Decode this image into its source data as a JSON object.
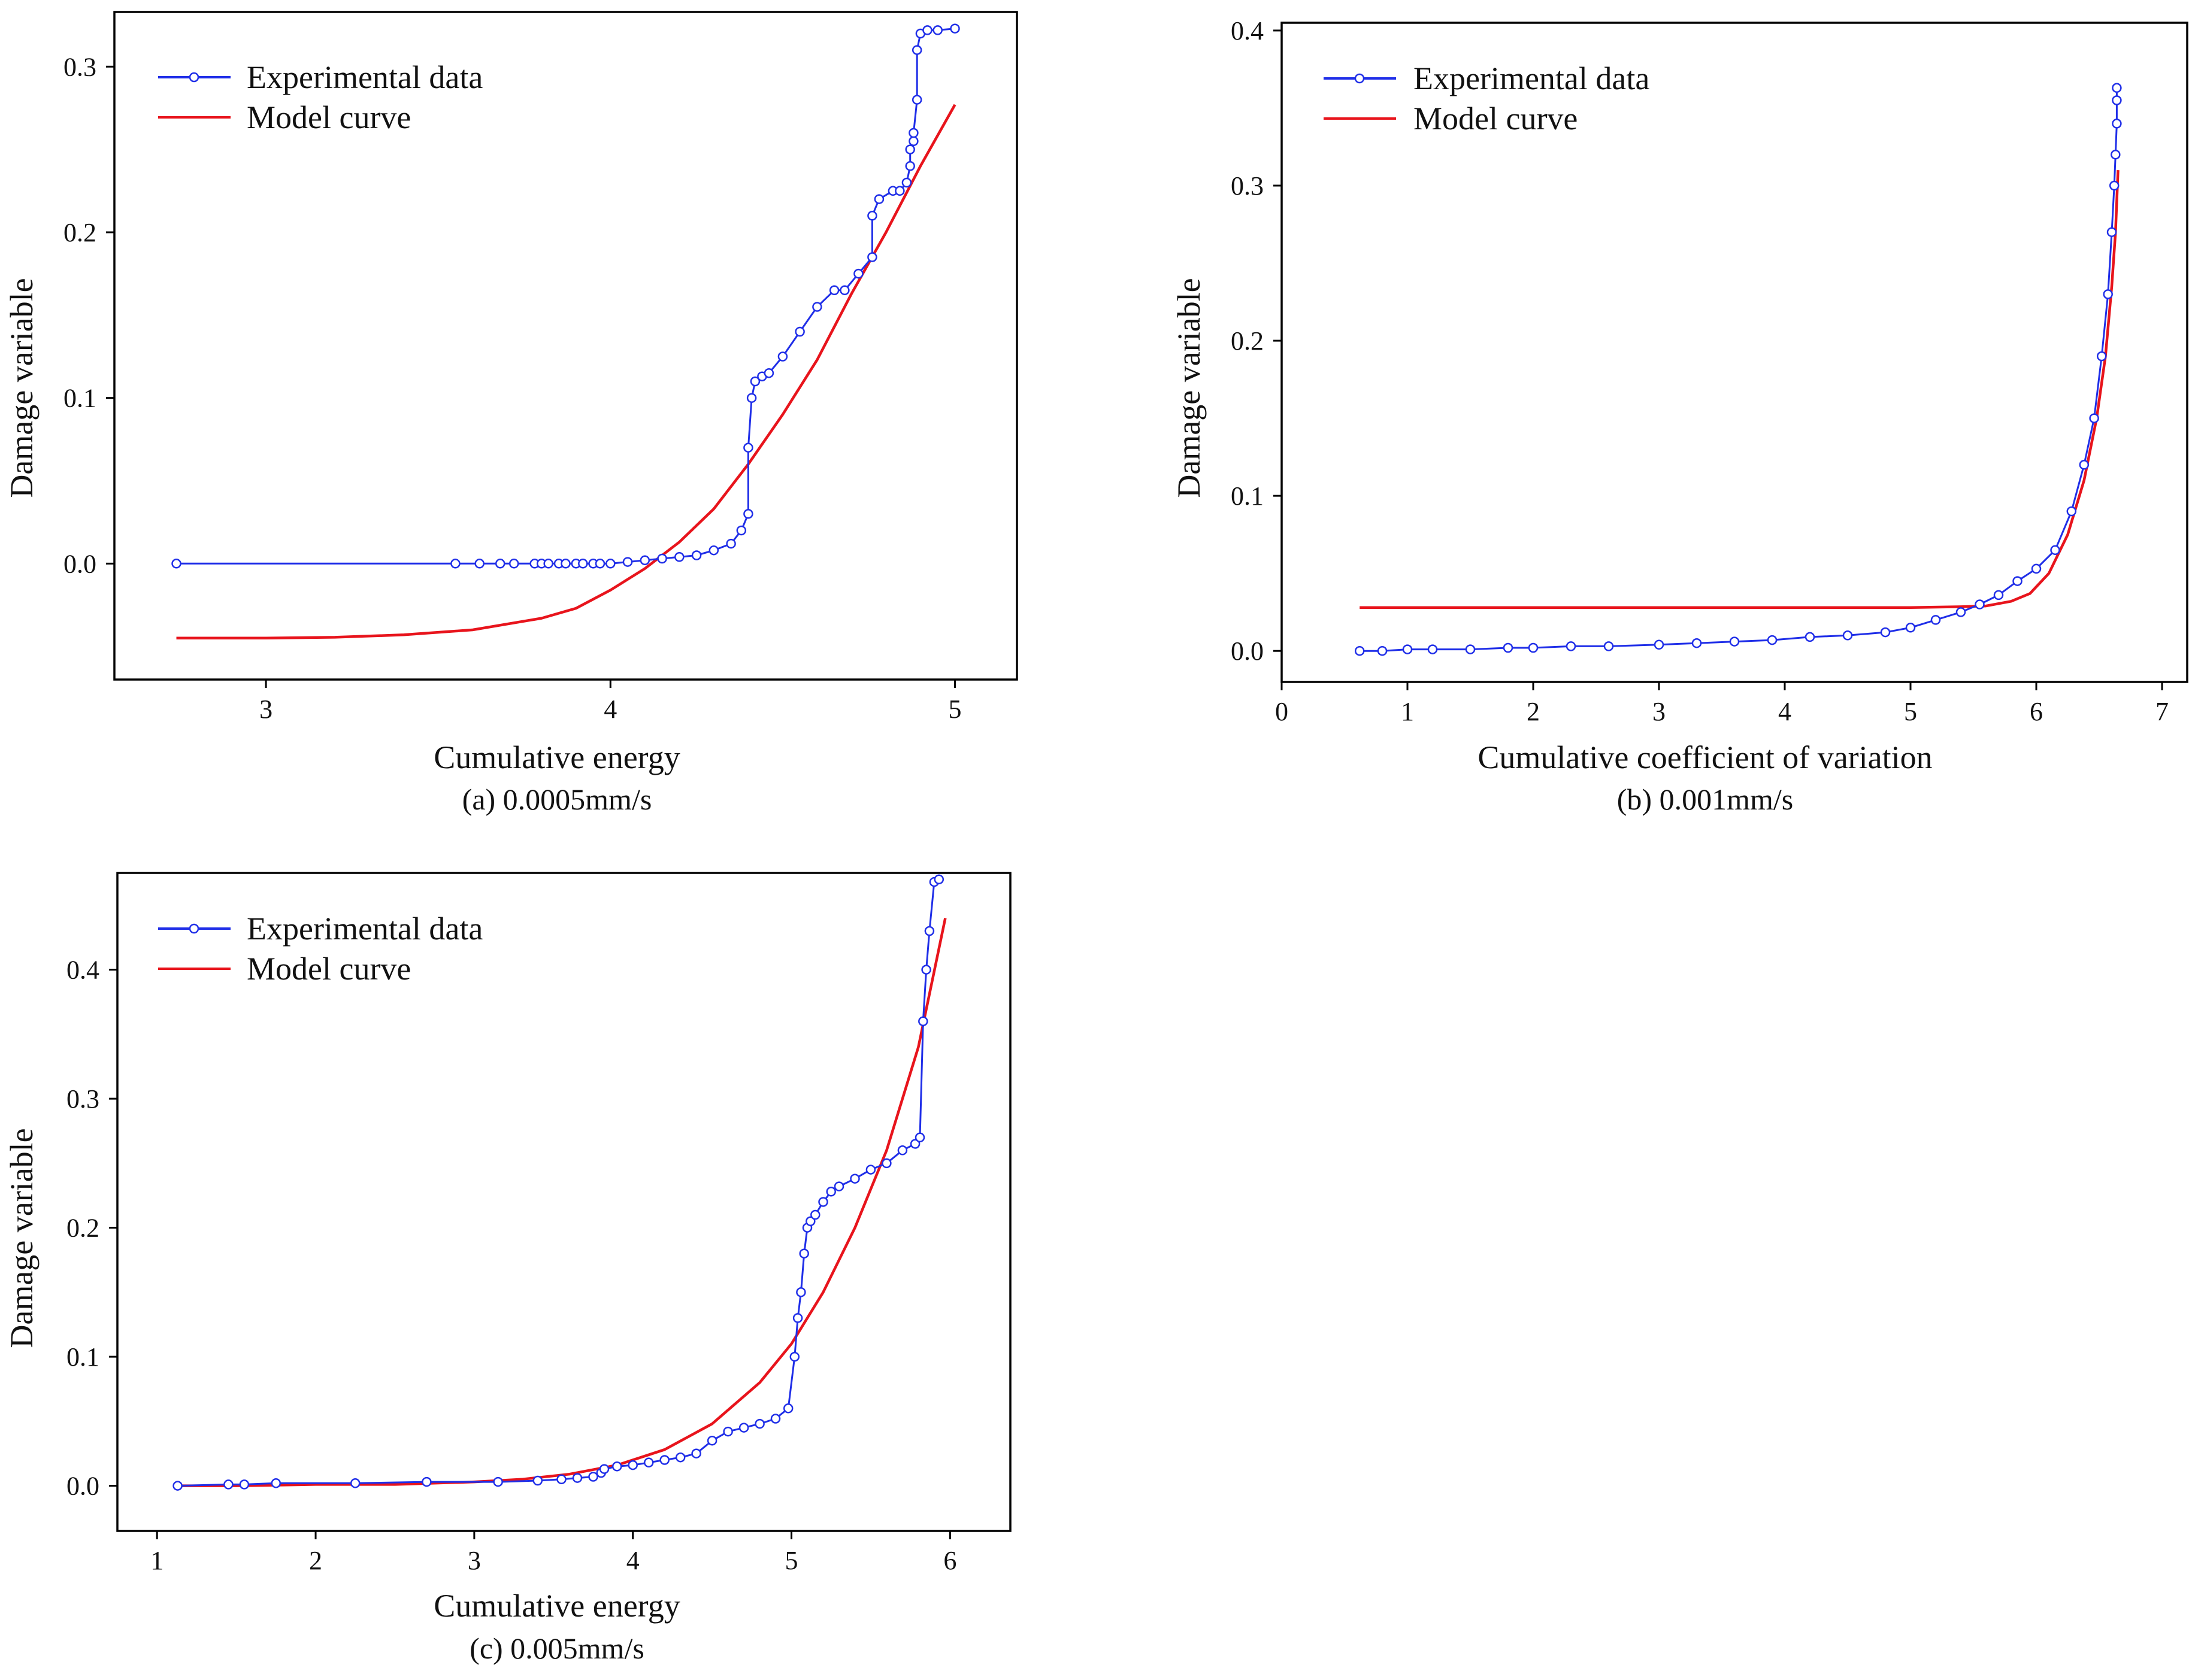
{
  "colors": {
    "experimental": "#1f2ee8",
    "model": "#e8141c",
    "axis": "#000000"
  },
  "chart_data": [
    {
      "id": "a",
      "type": "line",
      "caption": "(a) 0.0005mm/s",
      "xlabel": "Cumulative energy",
      "ylabel": "Damage  variable",
      "xlim": [
        2.56,
        5.18
      ],
      "ylim": [
        -0.07,
        0.333
      ],
      "xticks": [
        3,
        4,
        5
      ],
      "yticks": [
        0.0,
        0.1,
        0.2,
        0.3
      ],
      "xtick_labels": [
        "3",
        "4",
        "5"
      ],
      "ytick_labels": [
        "0.0",
        "0.1",
        "0.2",
        "0.3"
      ],
      "legend_position": "top-left",
      "series": [
        {
          "name": "Experimental data",
          "marker": "circle",
          "x": [
            2.74,
            3.55,
            3.62,
            3.68,
            3.72,
            3.78,
            3.8,
            3.82,
            3.85,
            3.87,
            3.9,
            3.92,
            3.95,
            3.97,
            4.0,
            4.05,
            4.1,
            4.15,
            4.2,
            4.25,
            4.3,
            4.35,
            4.38,
            4.4,
            4.4,
            4.41,
            4.42,
            4.44,
            4.46,
            4.5,
            4.55,
            4.6,
            4.65,
            4.68,
            4.72,
            4.76,
            4.76,
            4.78,
            4.82,
            4.84,
            4.86,
            4.87,
            4.87,
            4.88,
            4.88,
            4.89,
            4.89,
            4.9,
            4.92,
            4.95,
            5.0
          ],
          "y": [
            0.0,
            0.0,
            0.0,
            0.0,
            0.0,
            0.0,
            0.0,
            0.0,
            0.0,
            0.0,
            0.0,
            0.0,
            0.0,
            0.0,
            0.0,
            0.001,
            0.002,
            0.003,
            0.004,
            0.005,
            0.008,
            0.012,
            0.02,
            0.03,
            0.07,
            0.1,
            0.11,
            0.113,
            0.115,
            0.125,
            0.14,
            0.155,
            0.165,
            0.165,
            0.175,
            0.185,
            0.21,
            0.22,
            0.225,
            0.225,
            0.23,
            0.24,
            0.25,
            0.255,
            0.26,
            0.28,
            0.31,
            0.32,
            0.322,
            0.322,
            0.323
          ]
        },
        {
          "name": "Model curve",
          "style": "solid",
          "x": [
            2.74,
            3.0,
            3.2,
            3.4,
            3.6,
            3.8,
            3.9,
            4.0,
            4.1,
            4.2,
            4.3,
            4.4,
            4.5,
            4.6,
            4.7,
            4.8,
            4.9,
            5.0
          ],
          "y": [
            -0.045,
            -0.045,
            -0.0445,
            -0.043,
            -0.04,
            -0.033,
            -0.027,
            -0.016,
            -0.003,
            0.013,
            0.033,
            0.06,
            0.09,
            0.123,
            0.163,
            0.2,
            0.24,
            0.277
          ]
        }
      ]
    },
    {
      "id": "b",
      "type": "line",
      "caption": "(b) 0.001mm/s",
      "xlabel": "Cumulative coefficient of variation",
      "ylabel": "Damage  variable",
      "xlim": [
        0,
        7.2
      ],
      "ylim": [
        -0.02,
        0.405
      ],
      "xticks": [
        0,
        1,
        2,
        3,
        4,
        5,
        6,
        7
      ],
      "yticks": [
        0.0,
        0.1,
        0.2,
        0.3,
        0.4
      ],
      "xtick_labels": [
        "0",
        "1",
        "2",
        "3",
        "4",
        "5",
        "6",
        "7"
      ],
      "ytick_labels": [
        "0.0",
        "0.1",
        "0.2",
        "0.3",
        "0.4"
      ],
      "legend_position": "top-left",
      "series": [
        {
          "name": "Experimental data",
          "marker": "circle",
          "x": [
            0.62,
            0.8,
            1.0,
            1.2,
            1.5,
            1.8,
            2.0,
            2.3,
            2.6,
            3.0,
            3.3,
            3.6,
            3.9,
            4.2,
            4.5,
            4.8,
            5.0,
            5.2,
            5.4,
            5.55,
            5.7,
            5.85,
            6.0,
            6.15,
            6.28,
            6.38,
            6.46,
            6.52,
            6.57,
            6.6,
            6.62,
            6.63,
            6.64,
            6.64,
            6.64
          ],
          "y": [
            0.0,
            0.0,
            0.001,
            0.001,
            0.001,
            0.002,
            0.002,
            0.003,
            0.003,
            0.004,
            0.005,
            0.006,
            0.007,
            0.009,
            0.01,
            0.012,
            0.015,
            0.02,
            0.025,
            0.03,
            0.036,
            0.045,
            0.053,
            0.065,
            0.09,
            0.12,
            0.15,
            0.19,
            0.23,
            0.27,
            0.3,
            0.32,
            0.34,
            0.355,
            0.363
          ]
        },
        {
          "name": "Model curve",
          "style": "solid",
          "x": [
            0.62,
            2.0,
            3.0,
            4.0,
            5.0,
            5.4,
            5.6,
            5.8,
            5.95,
            6.1,
            6.25,
            6.38,
            6.48,
            6.55,
            6.6,
            6.63,
            6.65
          ],
          "y": [
            0.028,
            0.028,
            0.028,
            0.028,
            0.028,
            0.0285,
            0.029,
            0.032,
            0.037,
            0.05,
            0.075,
            0.11,
            0.15,
            0.19,
            0.235,
            0.27,
            0.31
          ]
        }
      ]
    },
    {
      "id": "c",
      "type": "line",
      "caption": "(c) 0.005mm/s",
      "xlabel": "Cumulative energy",
      "ylabel": "Damage  variable",
      "xlim": [
        0.75,
        6.38
      ],
      "ylim": [
        -0.035,
        0.475
      ],
      "xticks": [
        1,
        2,
        3,
        4,
        5,
        6
      ],
      "yticks": [
        0.0,
        0.1,
        0.2,
        0.3,
        0.4
      ],
      "xtick_labels": [
        "1",
        "2",
        "3",
        "4",
        "5",
        "6"
      ],
      "ytick_labels": [
        "0.0",
        "0.1",
        "0.2",
        "0.3",
        "0.4"
      ],
      "legend_position": "top-left",
      "series": [
        {
          "name": "Experimental data",
          "marker": "circle",
          "x": [
            1.13,
            1.45,
            1.55,
            1.75,
            2.25,
            2.7,
            3.15,
            3.4,
            3.55,
            3.65,
            3.75,
            3.8,
            3.82,
            3.9,
            4.0,
            4.1,
            4.2,
            4.3,
            4.4,
            4.5,
            4.6,
            4.7,
            4.8,
            4.9,
            4.98,
            5.02,
            5.04,
            5.06,
            5.08,
            5.1,
            5.12,
            5.15,
            5.2,
            5.25,
            5.3,
            5.4,
            5.5,
            5.6,
            5.7,
            5.78,
            5.81,
            5.83,
            5.85,
            5.87,
            5.9,
            5.93
          ],
          "y": [
            0.0,
            0.001,
            0.001,
            0.002,
            0.002,
            0.003,
            0.003,
            0.004,
            0.005,
            0.006,
            0.007,
            0.01,
            0.013,
            0.015,
            0.016,
            0.018,
            0.02,
            0.022,
            0.025,
            0.035,
            0.042,
            0.045,
            0.048,
            0.052,
            0.06,
            0.1,
            0.13,
            0.15,
            0.18,
            0.2,
            0.205,
            0.21,
            0.22,
            0.228,
            0.232,
            0.238,
            0.245,
            0.25,
            0.26,
            0.265,
            0.27,
            0.36,
            0.4,
            0.43,
            0.468,
            0.47
          ]
        },
        {
          "name": "Model curve",
          "style": "solid",
          "x": [
            1.13,
            1.5,
            2.0,
            2.5,
            3.0,
            3.3,
            3.6,
            3.9,
            4.2,
            4.5,
            4.8,
            5.0,
            5.2,
            5.4,
            5.6,
            5.8,
            5.97
          ],
          "y": [
            0.0,
            0.0,
            0.001,
            0.001,
            0.003,
            0.005,
            0.009,
            0.016,
            0.028,
            0.048,
            0.08,
            0.11,
            0.15,
            0.2,
            0.26,
            0.34,
            0.44
          ]
        }
      ]
    }
  ]
}
